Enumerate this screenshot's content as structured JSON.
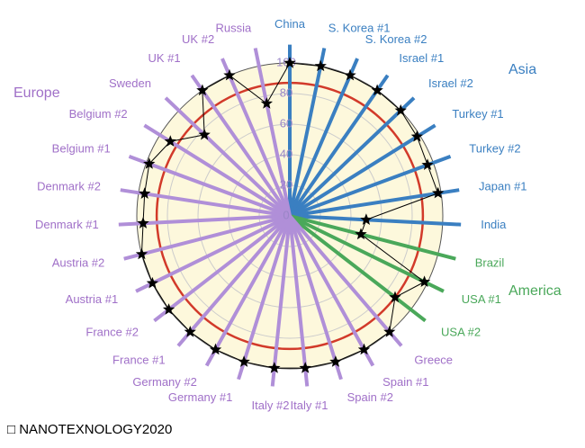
{
  "chart_data": {
    "type": "radar",
    "categories": [
      "China",
      "S. Korea #1",
      "S. Korea #2",
      "Israel #1",
      "Israel #2",
      "Turkey #1",
      "Turkey #2",
      "Japan #1",
      "India",
      "Brazil",
      "USA #1",
      "USA #2",
      "Greece",
      "Spain #1",
      "Spain #2",
      "Italy #1",
      "Italy #2",
      "Germany #1",
      "Germany #2",
      "France #1",
      "France #2",
      "Austria #1",
      "Austria #2",
      "Denmark #1",
      "Denmark #2",
      "Belgium #1",
      "Belgium #2",
      "Sweden",
      "UK #1",
      "UK #2",
      "Russia"
    ],
    "spoke_colors": [
      "#3a7fc1",
      "#3a7fc1",
      "#3a7fc1",
      "#3a7fc1",
      "#3a7fc1",
      "#3a7fc1",
      "#3a7fc1",
      "#3a7fc1",
      "#3a7fc1",
      "#4aa85a",
      "#4aa85a",
      "#4aa85a",
      "#b08fd8",
      "#b08fd8",
      "#b08fd8",
      "#b08fd8",
      "#b08fd8",
      "#b08fd8",
      "#b08fd8",
      "#b08fd8",
      "#b08fd8",
      "#b08fd8",
      "#b08fd8",
      "#b08fd8",
      "#b08fd8",
      "#b08fd8",
      "#b08fd8",
      "#b08fd8",
      "#b08fd8",
      "#b08fd8",
      "#b08fd8"
    ],
    "label_colors": [
      "#3a7fc1",
      "#3a7fc1",
      "#3a7fc1",
      "#3a7fc1",
      "#3a7fc1",
      "#3a7fc1",
      "#3a7fc1",
      "#3a7fc1",
      "#3a7fc1",
      "#4aa85a",
      "#4aa85a",
      "#4aa85a",
      "#a070c8",
      "#a070c8",
      "#a070c8",
      "#a070c8",
      "#a070c8",
      "#a070c8",
      "#a070c8",
      "#a070c8",
      "#a070c8",
      "#a070c8",
      "#a070c8",
      "#a070c8",
      "#a070c8",
      "#a070c8",
      "#a070c8",
      "#a070c8",
      "#a070c8",
      "#a070c8",
      "#a070c8"
    ],
    "series": [
      {
        "color": "#000000",
        "values": [
          100,
          100,
          100,
          100,
          100,
          98,
          96,
          98,
          50,
          48,
          98,
          87,
          100,
          100,
          100,
          100,
          100,
          100,
          100,
          100,
          100,
          100,
          100,
          96,
          96,
          98,
          92,
          77,
          100,
          100,
          75
        ]
      }
    ],
    "rlim": [
      0,
      100
    ],
    "rticks": [
      0,
      20,
      40,
      60,
      80,
      100
    ],
    "grid": true,
    "annotations": [
      {
        "text": "Asia",
        "color": "#3a7fc1"
      },
      {
        "text": "America",
        "color": "#4aa85a"
      },
      {
        "text": "Europe",
        "color": "#a070c8"
      }
    ],
    "caption": "□ NANOTEXNOLOGY2020"
  }
}
